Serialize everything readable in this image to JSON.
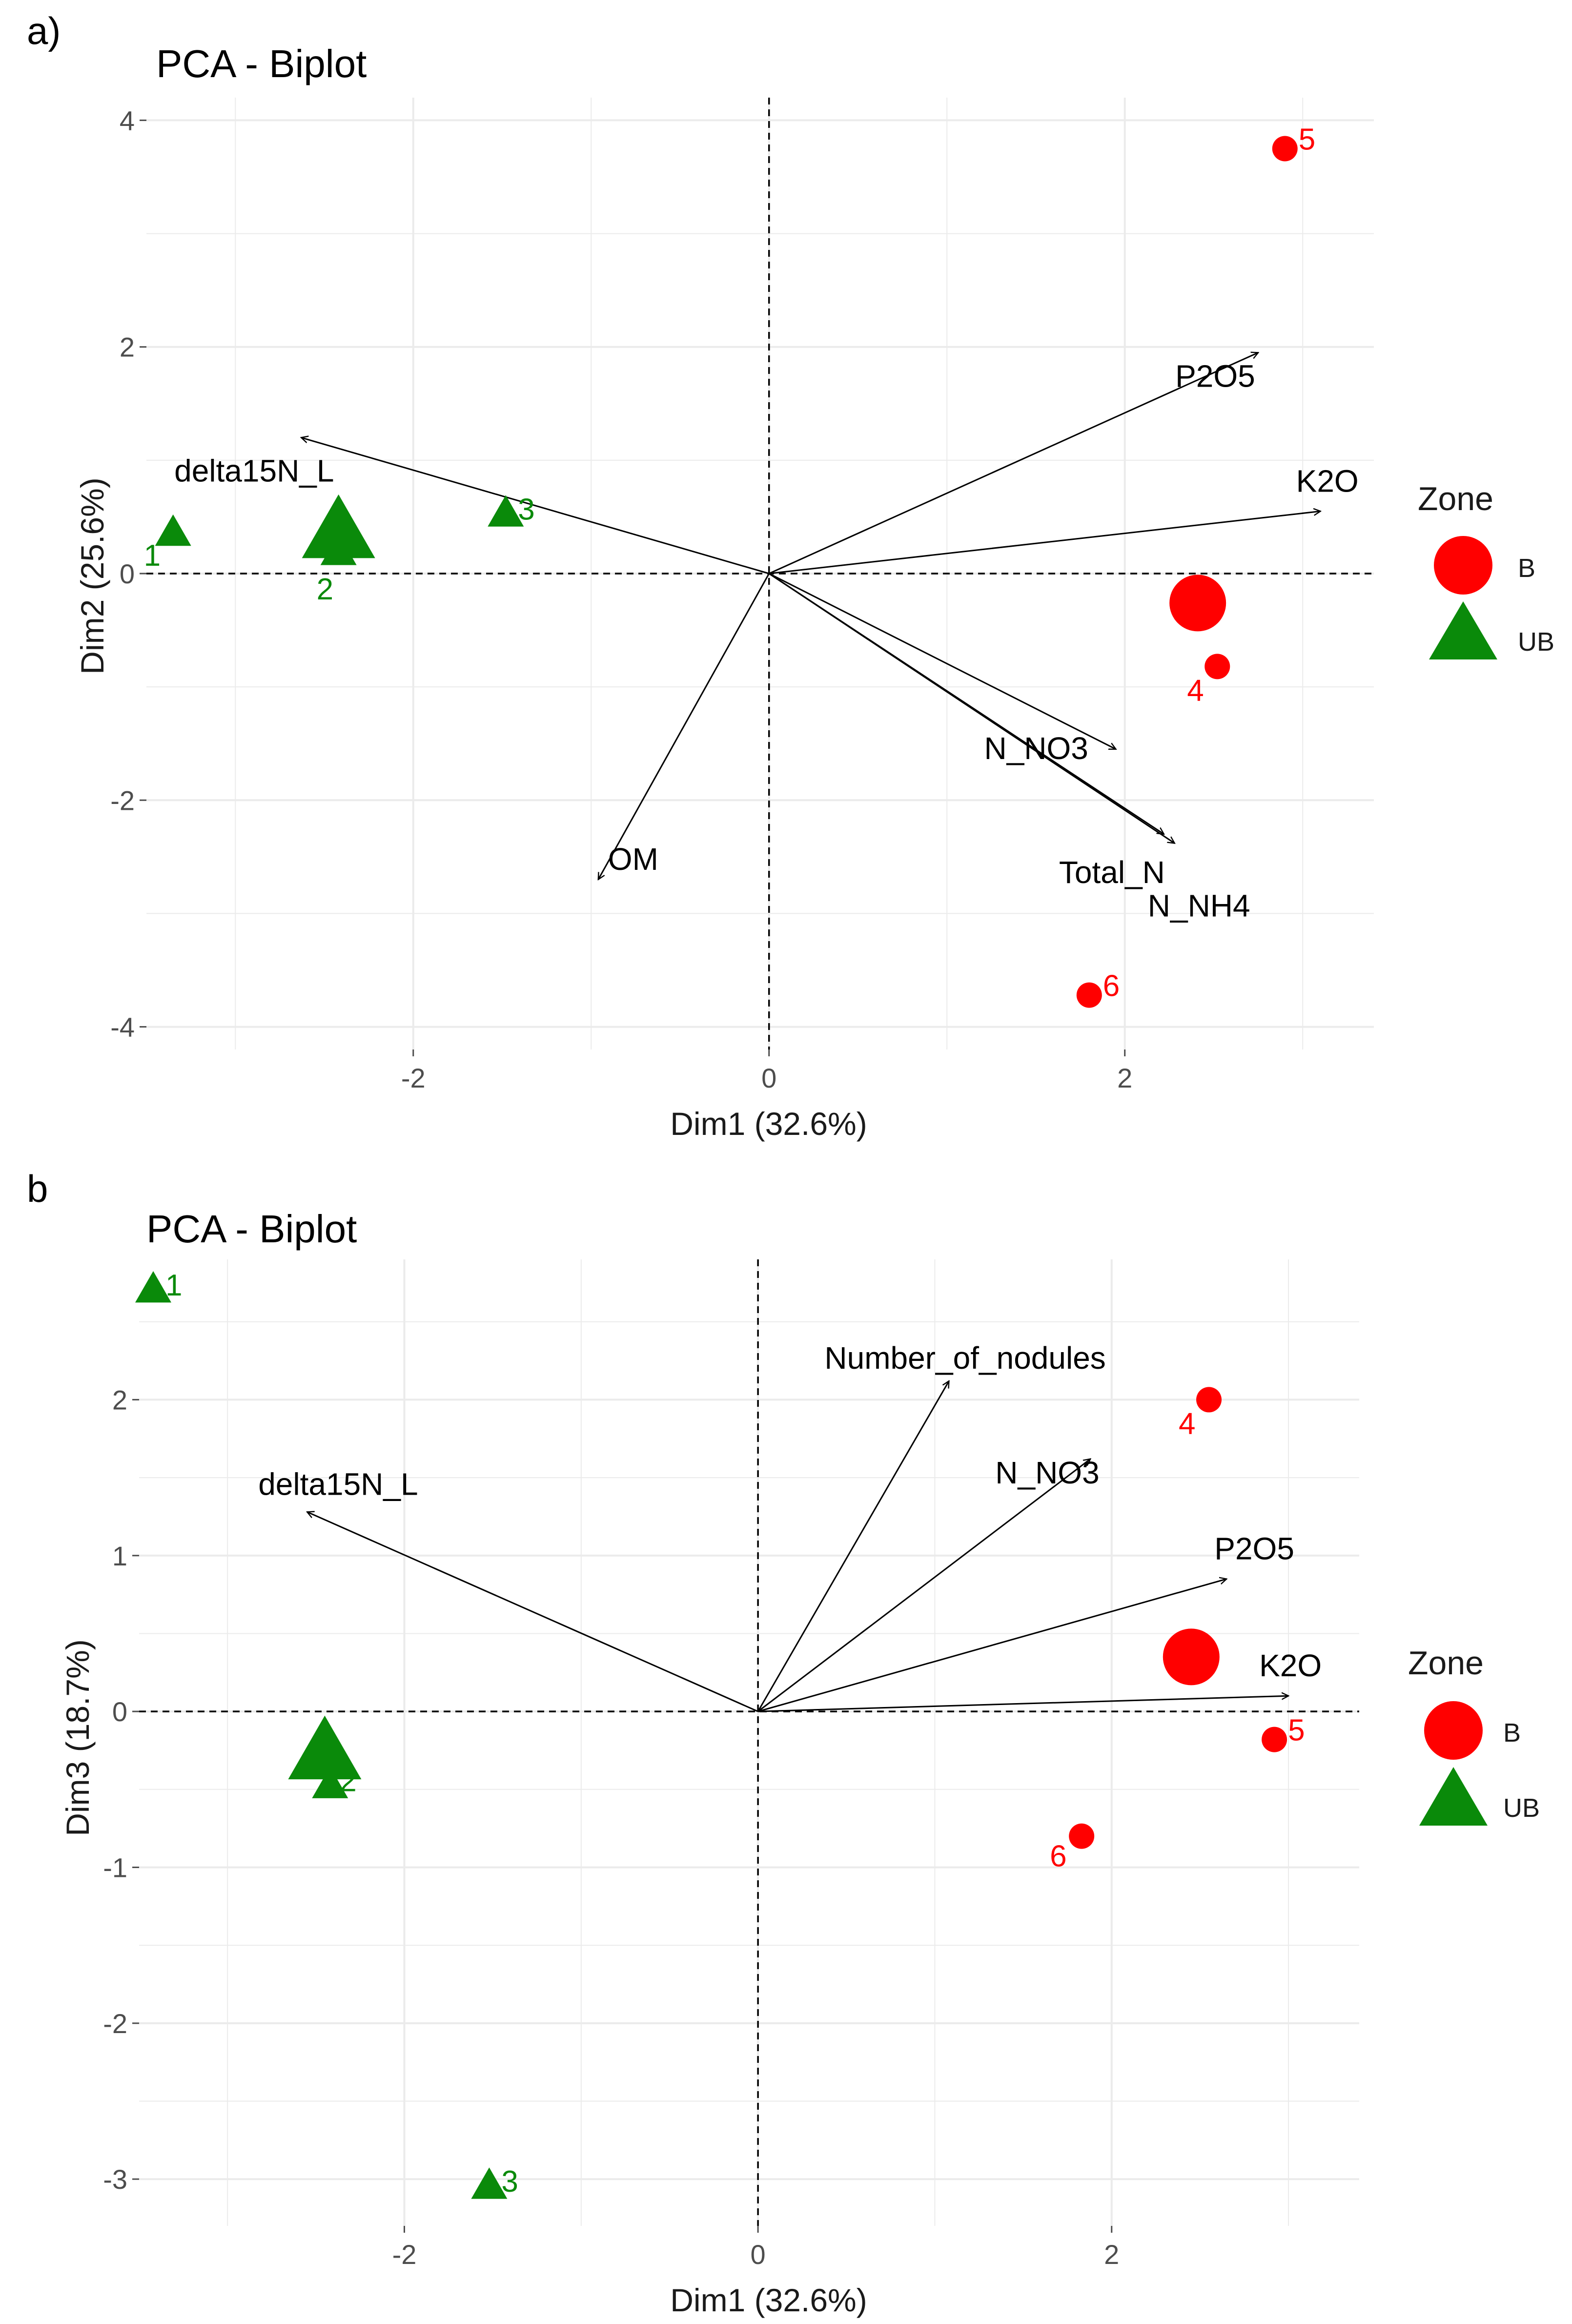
{
  "colors": {
    "B": "#ff0000",
    "UB": "#0a8a0a",
    "grid": "#ebebeb",
    "text": "#1a1a1a",
    "tick": "#4d4d4d"
  },
  "chart_data": [
    {
      "panel_label": "a)",
      "type": "scatter",
      "title": "PCA - Biplot",
      "xlabel": "Dim1 (32.6%)",
      "ylabel": "Dim2 (25.6%)",
      "xlim": [
        -3.5,
        3.4
      ],
      "ylim": [
        -4.2,
        4.2
      ],
      "xticks": [
        -2,
        0,
        2
      ],
      "xtick_labels": [
        "-2",
        "0",
        "2"
      ],
      "yticks": [
        -4,
        -2,
        0,
        2,
        4
      ],
      "ytick_labels": [
        "-4",
        "-2",
        "0",
        "2",
        "4"
      ],
      "points": [
        {
          "id": "1",
          "zone": "UB",
          "x": -3.35,
          "y": 0.35
        },
        {
          "id": "2",
          "zone": "UB",
          "x": -2.42,
          "y": 0.18
        },
        {
          "id": "3",
          "zone": "UB",
          "x": -1.48,
          "y": 0.52
        },
        {
          "id": "4",
          "zone": "B",
          "x": 2.52,
          "y": -0.82
        },
        {
          "id": "5",
          "zone": "B",
          "x": 2.9,
          "y": 3.75
        },
        {
          "id": "6",
          "zone": "B",
          "x": 1.8,
          "y": -3.72
        }
      ],
      "centroids": [
        {
          "zone": "UB",
          "x": -2.42,
          "y": 0.35
        },
        {
          "zone": "B",
          "x": 2.41,
          "y": -0.26
        }
      ],
      "arrows": [
        {
          "label": "P2O5",
          "x": 2.75,
          "y": 1.95
        },
        {
          "label": "K2O",
          "x": 3.1,
          "y": 0.55
        },
        {
          "label": "delta15N_L",
          "x": -2.63,
          "y": 1.2
        },
        {
          "label": "N_NO3",
          "x": 1.95,
          "y": -1.55
        },
        {
          "label": "Total_N",
          "x": 2.22,
          "y": -2.3
        },
        {
          "label": "N_NH4",
          "x": 2.28,
          "y": -2.38
        },
        {
          "label": "OM",
          "x": -0.96,
          "y": -2.7
        }
      ]
    },
    {
      "panel_label": "b",
      "type": "scatter",
      "title": "PCA - Biplot",
      "xlabel": "Dim1 (32.6%)",
      "ylabel": "Dim3 (18.7%)",
      "xlim": [
        -3.5,
        3.4
      ],
      "ylim": [
        -3.3,
        2.9
      ],
      "xticks": [
        -2,
        0,
        2
      ],
      "xtick_labels": [
        "-2",
        "0",
        "2"
      ],
      "yticks": [
        -3,
        -2,
        -1,
        0,
        1,
        2
      ],
      "ytick_labels": [
        "-3",
        "-2",
        "-1",
        "0",
        "1",
        "2"
      ],
      "points": [
        {
          "id": "1",
          "zone": "UB",
          "x": -3.42,
          "y": 2.7
        },
        {
          "id": "2",
          "zone": "UB",
          "x": -2.42,
          "y": -0.48
        },
        {
          "id": "3",
          "zone": "UB",
          "x": -1.52,
          "y": -3.05
        },
        {
          "id": "4",
          "zone": "B",
          "x": 2.55,
          "y": 2.0
        },
        {
          "id": "5",
          "zone": "B",
          "x": 2.92,
          "y": -0.18
        },
        {
          "id": "6",
          "zone": "B",
          "x": 1.83,
          "y": -0.8
        }
      ],
      "centroids": [
        {
          "zone": "UB",
          "x": -2.45,
          "y": -0.28
        },
        {
          "zone": "B",
          "x": 2.45,
          "y": 0.35
        }
      ],
      "arrows": [
        {
          "label": "Number_of_nodules",
          "x": 1.08,
          "y": 2.12
        },
        {
          "label": "N_NO3",
          "x": 1.88,
          "y": 1.62
        },
        {
          "label": "P2O5",
          "x": 2.65,
          "y": 0.85
        },
        {
          "label": "K2O",
          "x": 3.0,
          "y": 0.1
        },
        {
          "label": "delta15N_L",
          "x": -2.55,
          "y": 1.28
        }
      ]
    }
  ],
  "legend": {
    "title": "Zone",
    "entries": [
      {
        "zone": "B",
        "label": "B",
        "shape": "circle"
      },
      {
        "zone": "UB",
        "label": "UB",
        "shape": "triangle"
      }
    ],
    "placement": "right"
  }
}
